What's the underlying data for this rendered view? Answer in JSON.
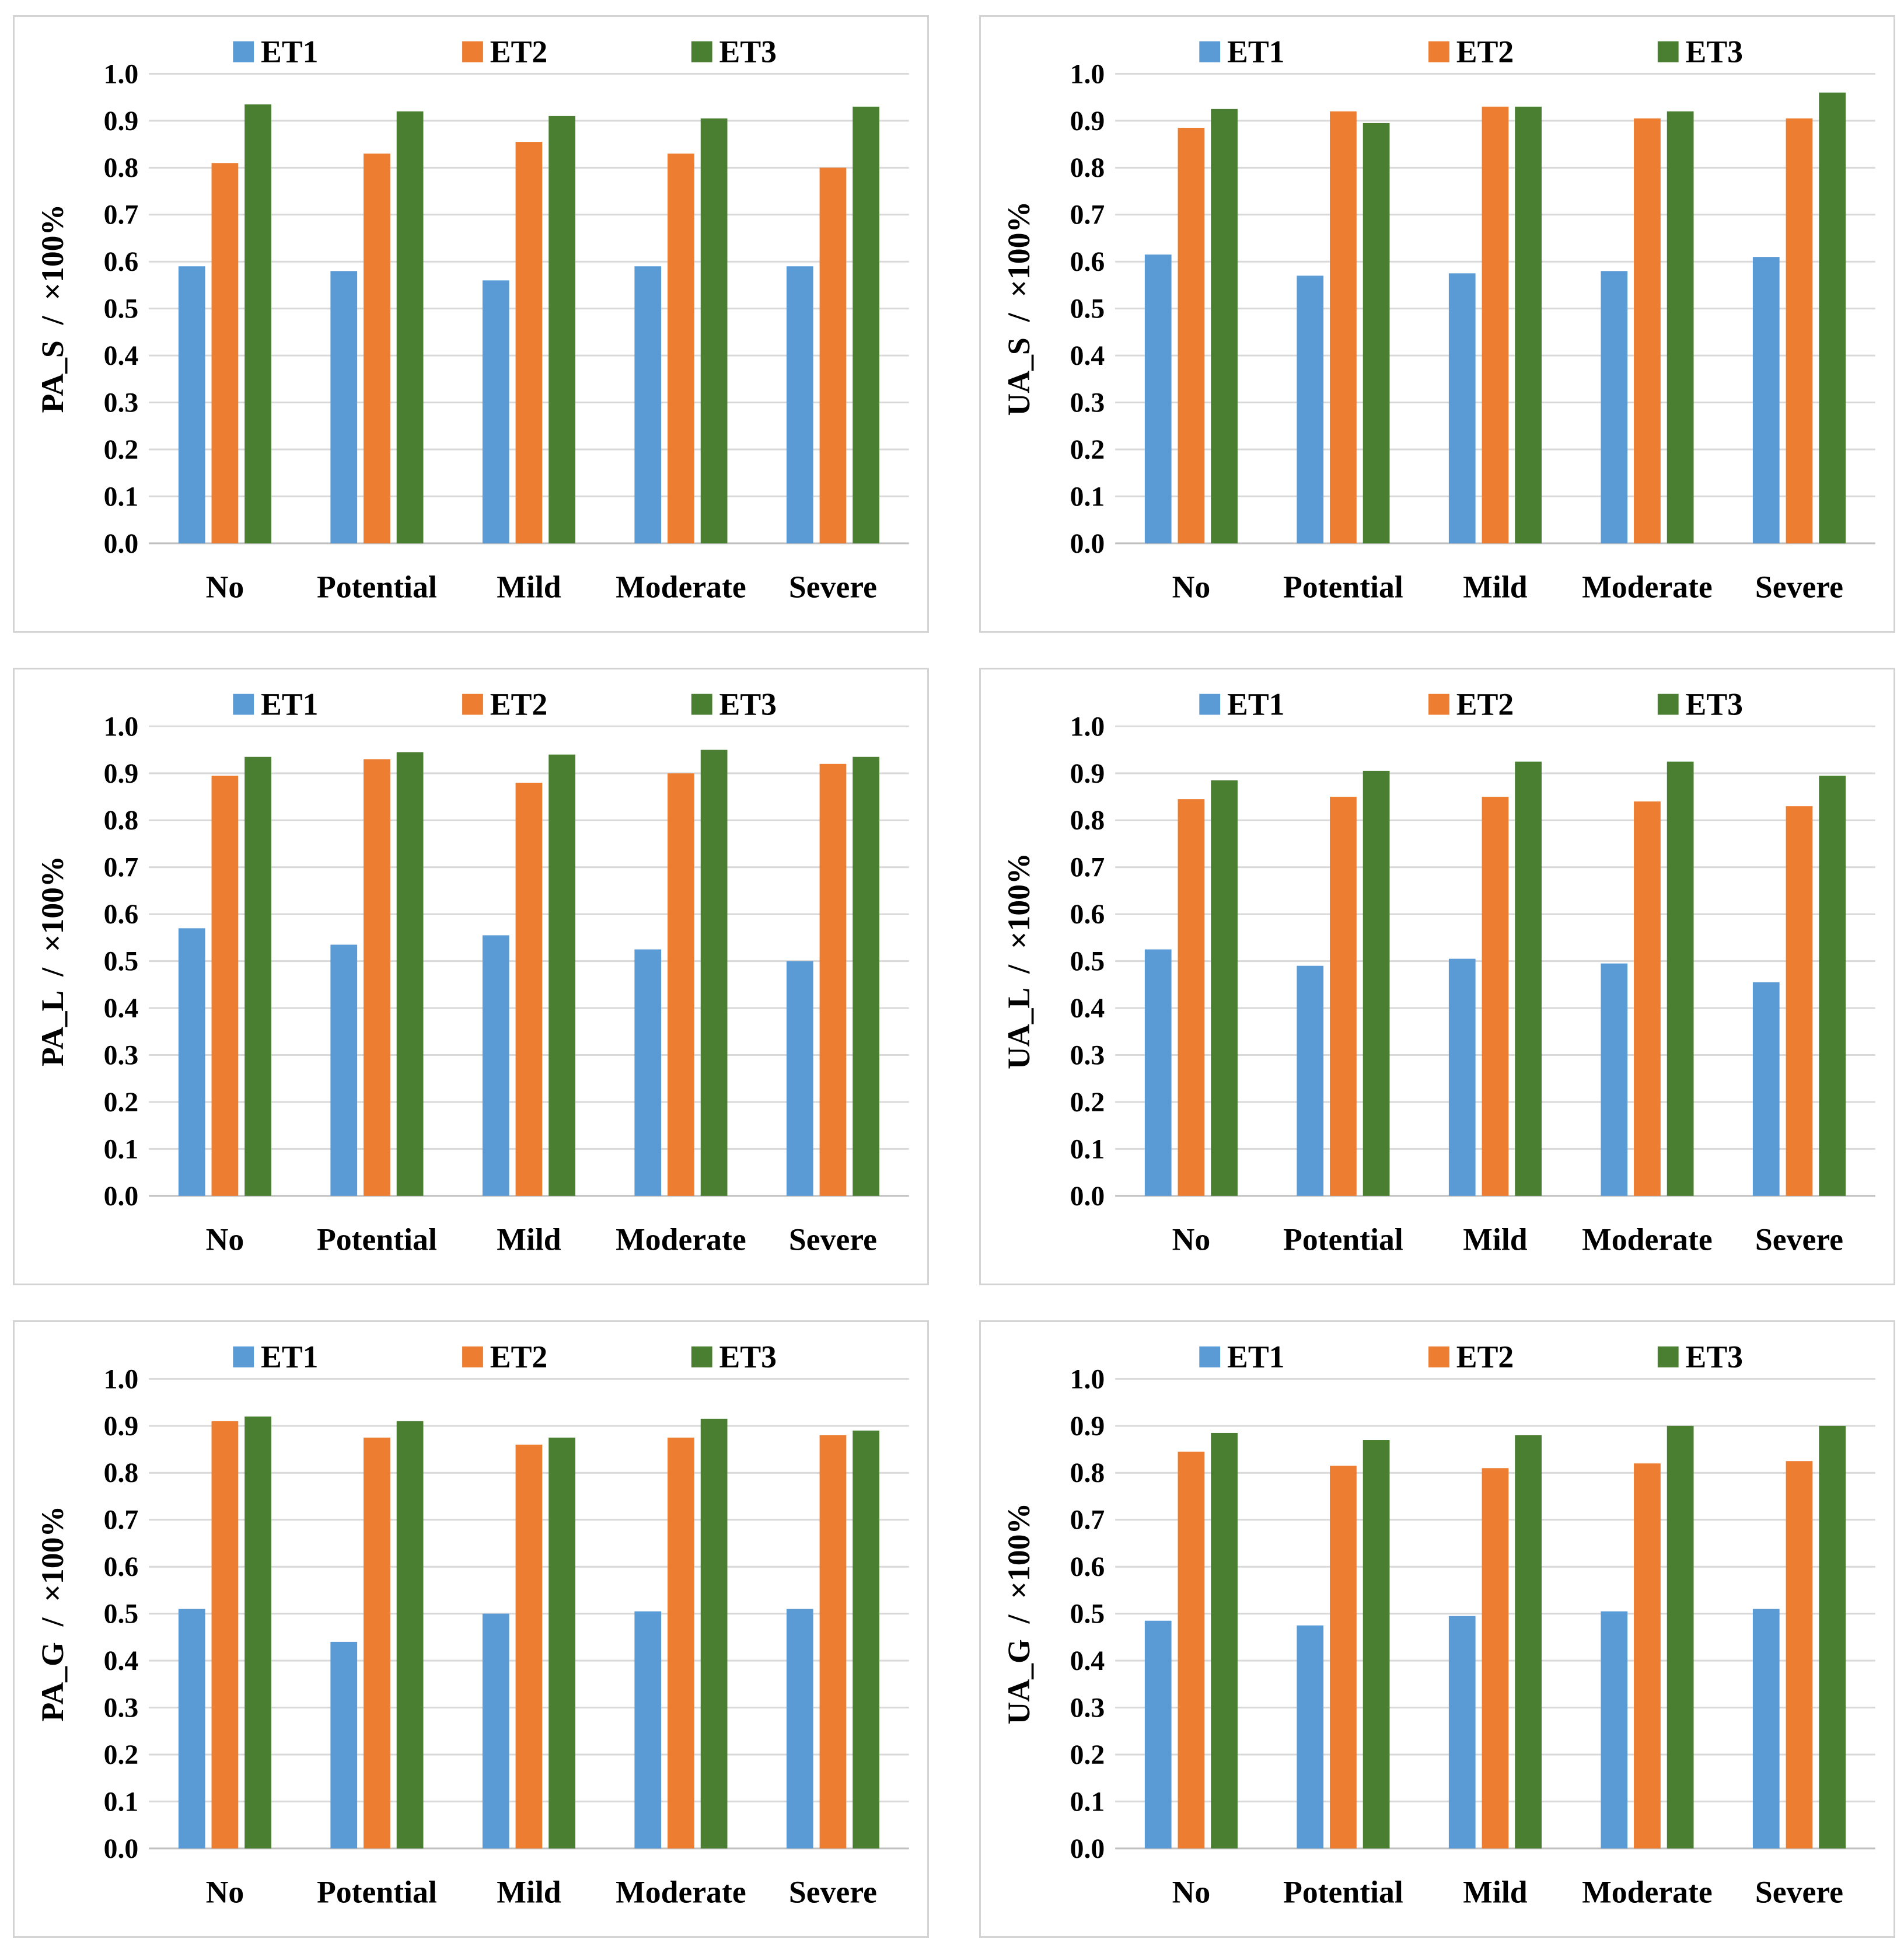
{
  "colors": {
    "ET1": "#5b9bd5",
    "ET2": "#ed7d31",
    "ET3": "#4a7f32"
  },
  "chart_data": [
    {
      "type": "bar",
      "ylabel": "PA_S  /  ×100%",
      "categories": [
        "No",
        "Potential",
        "Mild",
        "Moderate",
        "Severe"
      ],
      "ylim": [
        0.0,
        1.0
      ],
      "yticks": [
        "0.0",
        "0.1",
        "0.2",
        "0.3",
        "0.4",
        "0.5",
        "0.6",
        "0.7",
        "0.8",
        "0.9",
        "1.0"
      ],
      "grid": true,
      "legend": "top",
      "series": [
        {
          "name": "ET1",
          "values": [
            0.59,
            0.58,
            0.56,
            0.59,
            0.59
          ]
        },
        {
          "name": "ET2",
          "values": [
            0.81,
            0.83,
            0.855,
            0.83,
            0.8
          ]
        },
        {
          "name": "ET3",
          "values": [
            0.935,
            0.92,
            0.91,
            0.905,
            0.93
          ]
        }
      ]
    },
    {
      "type": "bar",
      "ylabel": "UA_S  /  ×100%",
      "categories": [
        "No",
        "Potential",
        "Mild",
        "Moderate",
        "Severe"
      ],
      "ylim": [
        0.0,
        1.0
      ],
      "yticks": [
        "0.0",
        "0.1",
        "0.2",
        "0.3",
        "0.4",
        "0.5",
        "0.6",
        "0.7",
        "0.8",
        "0.9",
        "1.0"
      ],
      "grid": true,
      "legend": "top",
      "series": [
        {
          "name": "ET1",
          "values": [
            0.615,
            0.57,
            0.575,
            0.58,
            0.61
          ]
        },
        {
          "name": "ET2",
          "values": [
            0.885,
            0.92,
            0.93,
            0.905,
            0.905
          ]
        },
        {
          "name": "ET3",
          "values": [
            0.925,
            0.895,
            0.93,
            0.92,
            0.96
          ]
        }
      ]
    },
    {
      "type": "bar",
      "ylabel": "PA_L  /  ×100%",
      "categories": [
        "No",
        "Potential",
        "Mild",
        "Moderate",
        "Severe"
      ],
      "ylim": [
        0.0,
        1.0
      ],
      "yticks": [
        "0.0",
        "0.1",
        "0.2",
        "0.3",
        "0.4",
        "0.5",
        "0.6",
        "0.7",
        "0.8",
        "0.9",
        "1.0"
      ],
      "grid": true,
      "legend": "top",
      "series": [
        {
          "name": "ET1",
          "values": [
            0.57,
            0.535,
            0.555,
            0.525,
            0.5
          ]
        },
        {
          "name": "ET2",
          "values": [
            0.895,
            0.93,
            0.88,
            0.9,
            0.92
          ]
        },
        {
          "name": "ET3",
          "values": [
            0.935,
            0.945,
            0.94,
            0.95,
            0.935
          ]
        }
      ]
    },
    {
      "type": "bar",
      "ylabel": "UA_L  /  ×100%",
      "categories": [
        "No",
        "Potential",
        "Mild",
        "Moderate",
        "Severe"
      ],
      "ylim": [
        0.0,
        1.0
      ],
      "yticks": [
        "0.0",
        "0.1",
        "0.2",
        "0.3",
        "0.4",
        "0.5",
        "0.6",
        "0.7",
        "0.8",
        "0.9",
        "1.0"
      ],
      "grid": true,
      "legend": "top",
      "series": [
        {
          "name": "ET1",
          "values": [
            0.525,
            0.49,
            0.505,
            0.495,
            0.455
          ]
        },
        {
          "name": "ET2",
          "values": [
            0.845,
            0.85,
            0.85,
            0.84,
            0.83
          ]
        },
        {
          "name": "ET3",
          "values": [
            0.885,
            0.905,
            0.925,
            0.925,
            0.895
          ]
        }
      ]
    },
    {
      "type": "bar",
      "ylabel": "PA_G  /  ×100%",
      "categories": [
        "No",
        "Potential",
        "Mild",
        "Moderate",
        "Severe"
      ],
      "ylim": [
        0.0,
        1.0
      ],
      "yticks": [
        "0.0",
        "0.1",
        "0.2",
        "0.3",
        "0.4",
        "0.5",
        "0.6",
        "0.7",
        "0.8",
        "0.9",
        "1.0"
      ],
      "grid": true,
      "legend": "top",
      "series": [
        {
          "name": "ET1",
          "values": [
            0.51,
            0.44,
            0.5,
            0.505,
            0.51
          ]
        },
        {
          "name": "ET2",
          "values": [
            0.91,
            0.875,
            0.86,
            0.875,
            0.88
          ]
        },
        {
          "name": "ET3",
          "values": [
            0.92,
            0.91,
            0.875,
            0.915,
            0.89
          ]
        }
      ]
    },
    {
      "type": "bar",
      "ylabel": "UA_G  /  ×100%",
      "categories": [
        "No",
        "Potential",
        "Mild",
        "Moderate",
        "Severe"
      ],
      "ylim": [
        0.0,
        1.0
      ],
      "yticks": [
        "0.0",
        "0.1",
        "0.2",
        "0.3",
        "0.4",
        "0.5",
        "0.6",
        "0.7",
        "0.8",
        "0.9",
        "1.0"
      ],
      "grid": true,
      "legend": "top",
      "series": [
        {
          "name": "ET1",
          "values": [
            0.485,
            0.475,
            0.495,
            0.505,
            0.51
          ]
        },
        {
          "name": "ET2",
          "values": [
            0.845,
            0.815,
            0.81,
            0.82,
            0.825
          ]
        },
        {
          "name": "ET3",
          "values": [
            0.885,
            0.87,
            0.88,
            0.9,
            0.9
          ]
        }
      ]
    }
  ]
}
